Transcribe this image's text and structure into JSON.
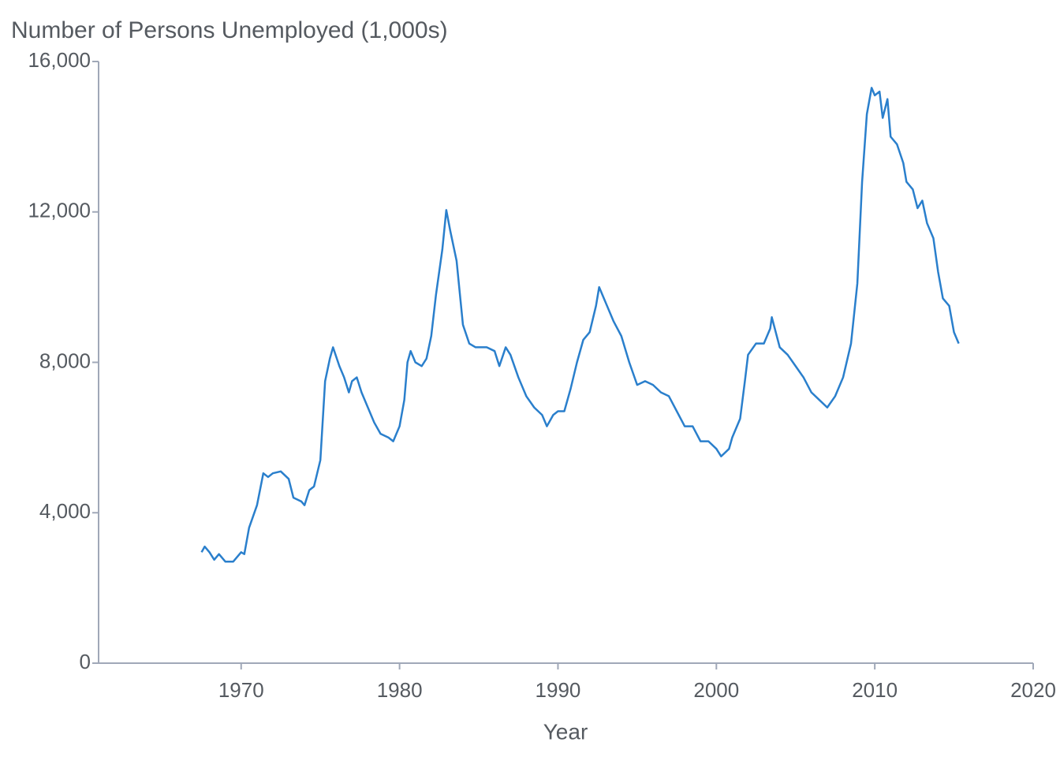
{
  "chart_data": {
    "type": "line",
    "title": "Number of Persons Unemployed (1,000s)",
    "x_label": "Year",
    "xlim": [
      1961,
      2020
    ],
    "ylim": [
      0,
      16000
    ],
    "xticks": [
      1970,
      1980,
      1990,
      2000,
      2010,
      2020
    ],
    "yticks": [
      0,
      {
        "value": 4000,
        "label": "4,000"
      },
      {
        "value": 8000,
        "label": "8,000"
      },
      {
        "value": 12000,
        "label": "12,000"
      },
      {
        "value": 16000,
        "label": "16,000"
      }
    ],
    "grid": false,
    "color": "#2a7fcc",
    "x": [
      1967.5,
      1967.7,
      1968.0,
      1968.3,
      1968.6,
      1969.0,
      1969.5,
      1970.0,
      1970.2,
      1970.5,
      1971.0,
      1971.4,
      1971.7,
      1972.0,
      1972.5,
      1973.0,
      1973.3,
      1973.8,
      1974.0,
      1974.3,
      1974.6,
      1975.0,
      1975.3,
      1975.6,
      1975.8,
      1976.2,
      1976.5,
      1976.8,
      1977.0,
      1977.3,
      1977.6,
      1978.0,
      1978.4,
      1978.8,
      1979.3,
      1979.6,
      1980.0,
      1980.3,
      1980.5,
      1980.7,
      1981.0,
      1981.4,
      1981.7,
      1982.0,
      1982.3,
      1982.7,
      1982.95,
      1983.2,
      1983.6,
      1984.0,
      1984.4,
      1984.8,
      1985.5,
      1986.0,
      1986.3,
      1986.7,
      1987.0,
      1987.5,
      1988.0,
      1988.5,
      1989.0,
      1989.3,
      1989.7,
      1990.0,
      1990.4,
      1990.8,
      1991.2,
      1991.6,
      1992.0,
      1992.4,
      1992.6,
      1993.0,
      1993.5,
      1994.0,
      1994.5,
      1995.0,
      1995.5,
      1996.0,
      1996.5,
      1997.0,
      1997.5,
      1998.0,
      1998.5,
      1999.0,
      1999.5,
      2000.0,
      2000.3,
      2000.8,
      2001.0,
      2001.5,
      2001.8,
      2002.0,
      2002.5,
      2003.0,
      2003.4,
      2003.5,
      2004.0,
      2004.5,
      2005.0,
      2005.5,
      2006.0,
      2006.5,
      2007.0,
      2007.5,
      2008.0,
      2008.5,
      2008.9,
      2009.2,
      2009.5,
      2009.8,
      2010.0,
      2010.3,
      2010.5,
      2010.8,
      2011.0,
      2011.4,
      2011.8,
      2012.0,
      2012.4,
      2012.7,
      2013.0,
      2013.3,
      2013.7,
      2014.0,
      2014.3,
      2014.7,
      2015.0,
      2015.3
    ],
    "values": [
      2950,
      3100,
      2950,
      2750,
      2900,
      2700,
      2700,
      2950,
      2900,
      3600,
      4200,
      5050,
      4950,
      5050,
      5100,
      4900,
      4400,
      4300,
      4200,
      4600,
      4700,
      5400,
      7500,
      8100,
      8400,
      7900,
      7600,
      7200,
      7500,
      7600,
      7200,
      6800,
      6400,
      6100,
      6000,
      5900,
      6300,
      7000,
      8000,
      8300,
      8000,
      7900,
      8100,
      8700,
      9800,
      11000,
      12050,
      11500,
      10700,
      9000,
      8500,
      8400,
      8400,
      8300,
      7900,
      8400,
      8200,
      7600,
      7100,
      6800,
      6600,
      6300,
      6600,
      6700,
      6700,
      7300,
      8000,
      8600,
      8800,
      9500,
      10000,
      9600,
      9100,
      8700,
      8000,
      7400,
      7500,
      7400,
      7200,
      7100,
      6700,
      6300,
      6300,
      5900,
      5900,
      5700,
      5500,
      5700,
      6000,
      6500,
      7500,
      8200,
      8500,
      8500,
      8900,
      9200,
      8400,
      8200,
      7900,
      7600,
      7200,
      7000,
      6800,
      7100,
      7600,
      8500,
      10100,
      12800,
      14600,
      15300,
      15100,
      15200,
      14500,
      15000,
      14000,
      13800,
      13300,
      12800,
      12600,
      12100,
      12300,
      11700,
      11300,
      10400,
      9700,
      9500,
      8800,
      8500
    ]
  }
}
